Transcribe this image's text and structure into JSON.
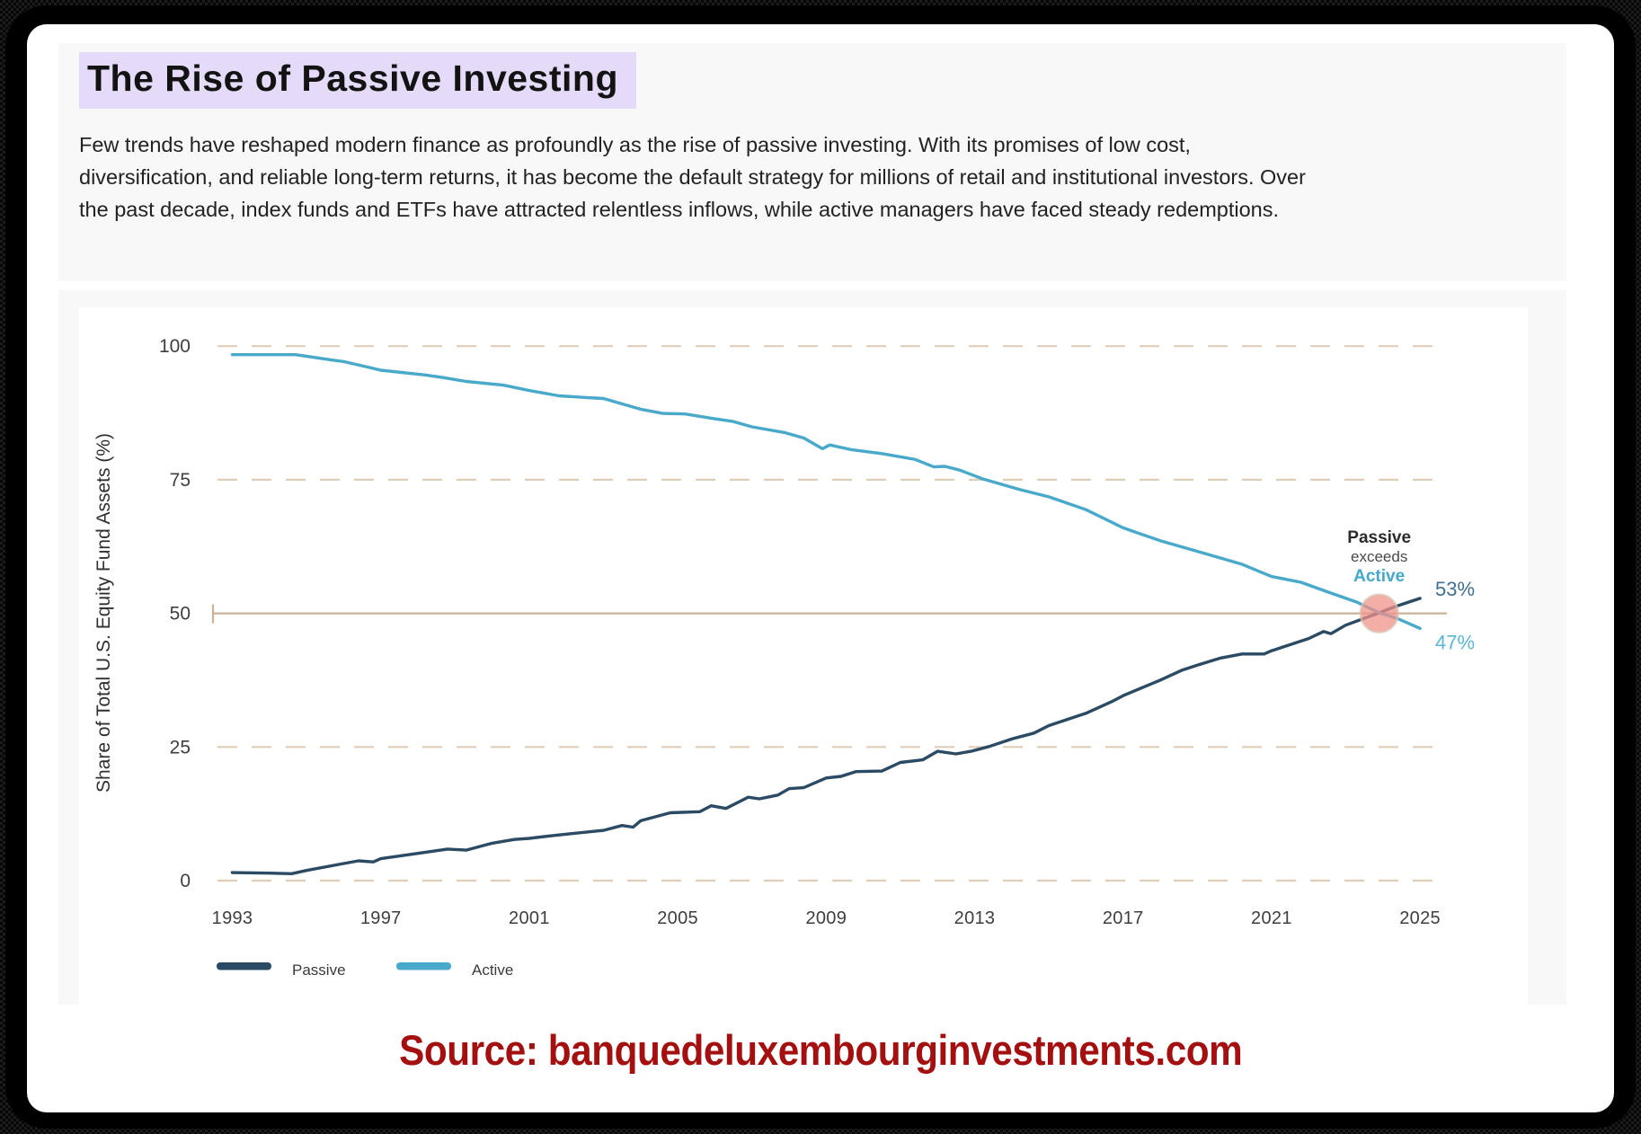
{
  "header": {
    "title": "The Rise of Passive Investing",
    "paragraph": "Few trends have reshaped modern finance as profoundly as the rise of passive investing. With its promises of low cost, diversification, and reliable long-term returns, it has become the default strategy for millions of retail and institutional investors. Over the past decade, index funds and ETFs have attracted relentless inflows, while active managers have faced steady redemptions.",
    "highlight_color": "#e5daf8"
  },
  "footer": {
    "source": "Source: banquedeluxembourginvestments.com",
    "source_color": "#a40f0f"
  },
  "chart_data": {
    "type": "line",
    "ylabel": "Share of Total U.S. Equity Fund Assets (%)",
    "xlim": [
      1993,
      2025
    ],
    "ylim": [
      0,
      100
    ],
    "xticks": [
      1993,
      1997,
      2001,
      2005,
      2009,
      2013,
      2017,
      2021,
      2025
    ],
    "yticks": [
      0,
      25,
      50,
      75,
      100
    ],
    "grid": "horizontal dashed",
    "grid_color": "#dfcdb8",
    "reference_line": {
      "y": 50,
      "color": "#cdb29a",
      "style": "solid"
    },
    "legend_position": "bottom-left",
    "legend": [
      {
        "label": "Passive",
        "color": "#2b4a63"
      },
      {
        "label": "Active",
        "color": "#49a9cb"
      }
    ],
    "series": [
      {
        "name": "Passive",
        "color": "#2b4a63",
        "x": [
          1993,
          1994,
          1994.6,
          1995,
          1996,
          1996.4,
          1996.8,
          1997,
          1998,
          1998.8,
          1999.3,
          2000,
          2000.6,
          2001,
          2001.5,
          2002,
          2003,
          2003.5,
          2003.8,
          2004,
          2004.8,
          2005.6,
          2005.9,
          2006.3,
          2006.9,
          2007.2,
          2007.7,
          2008,
          2008.4,
          2009,
          2009.4,
          2009.8,
          2010.5,
          2011,
          2011.6,
          2012,
          2012.5,
          2012.9,
          2013.4,
          2014,
          2014.6,
          2015,
          2016,
          2016.7,
          2017,
          2018,
          2018.6,
          2019,
          2019.6,
          2020.2,
          2020.8,
          2021,
          2022,
          2022.4,
          2022.6,
          2023,
          2023.9,
          2024.3,
          2025
        ],
        "values": [
          1.5,
          1.4,
          1.3,
          1.9,
          3.2,
          3.7,
          3.5,
          4.1,
          5.1,
          5.9,
          5.7,
          7.0,
          7.7,
          7.9,
          8.3,
          8.7,
          9.4,
          10.3,
          10.0,
          11.2,
          12.7,
          12.9,
          14.0,
          13.5,
          15.6,
          15.3,
          16.0,
          17.2,
          17.4,
          19.2,
          19.5,
          20.4,
          20.5,
          22.1,
          22.6,
          24.2,
          23.7,
          24.2,
          25.1,
          26.5,
          27.6,
          29.0,
          31.3,
          33.5,
          34.6,
          37.5,
          39.4,
          40.3,
          41.6,
          42.4,
          42.4,
          43.0,
          45.3,
          46.6,
          46.2,
          47.8,
          50.1,
          51.2,
          52.8
        ]
      },
      {
        "name": "Active",
        "color": "#49a9cb",
        "x": [
          1993,
          1994.7,
          1995.8,
          1996,
          1996.7,
          1997,
          1998.2,
          1998.7,
          1999.3,
          2000.3,
          2001,
          2001.8,
          2002.5,
          2003,
          2004,
          2004.6,
          2005.2,
          2006,
          2006.5,
          2007,
          2007.9,
          2008.4,
          2008.9,
          2009.1,
          2009.7,
          2010.5,
          2011.4,
          2011.9,
          2012.2,
          2012.6,
          2013.2,
          2014.2,
          2015,
          2016,
          2017,
          2017.5,
          2018,
          2019.1,
          2020.2,
          2021,
          2021.8,
          2022.6,
          2023.3,
          2023.9,
          2024.4,
          2025
        ],
        "values": [
          98.4,
          98.4,
          97.3,
          97.1,
          96.0,
          95.5,
          94.6,
          94.1,
          93.4,
          92.7,
          91.7,
          90.7,
          90.4,
          90.2,
          88.2,
          87.4,
          87.3,
          86.4,
          85.9,
          84.9,
          83.8,
          82.8,
          80.8,
          81.5,
          80.6,
          79.9,
          78.8,
          77.4,
          77.5,
          76.8,
          75.2,
          73.2,
          71.8,
          69.4,
          66.0,
          64.8,
          63.6,
          61.4,
          59.2,
          56.9,
          55.8,
          53.8,
          52.1,
          50.1,
          49.0,
          47.2
        ]
      }
    ],
    "crossover": {
      "x": 2023.9,
      "y": 50,
      "marker_color": "#f0918a",
      "marker_ring": "#d9c4af"
    },
    "annotation": {
      "x": 2023.9,
      "line1": "Passive",
      "line2": "exceeds",
      "line3": "Active",
      "active_color": "#45a7ca"
    },
    "end_labels": {
      "passive": {
        "text": "53%",
        "value": 53,
        "color": "#3f6f8e"
      },
      "active": {
        "text": "47%",
        "value": 47,
        "color": "#5cb6d8"
      }
    }
  }
}
